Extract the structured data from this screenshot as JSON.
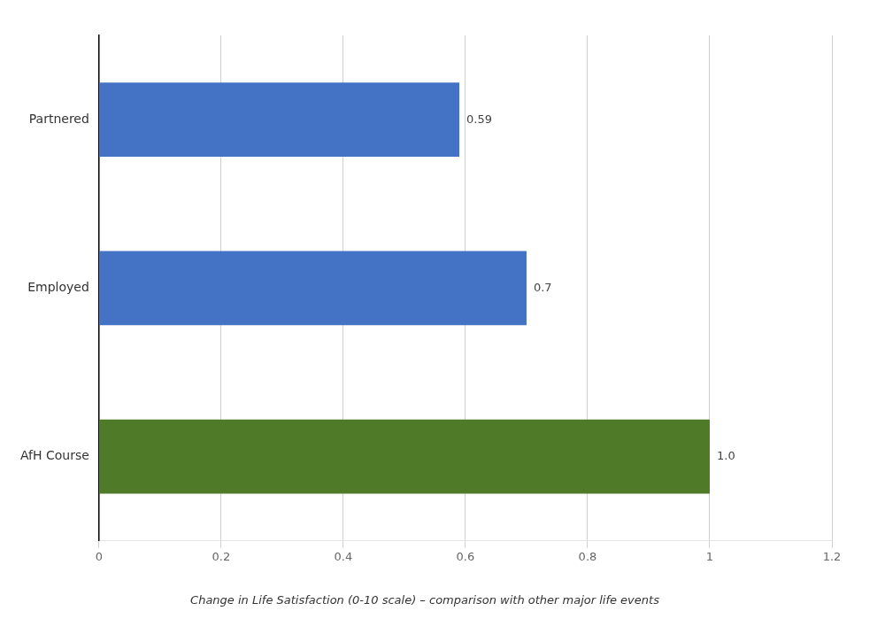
{
  "chart_data": {
    "type": "bar",
    "orientation": "horizontal",
    "caption": "Change in Life Satisfaction (0-10 scale) – comparison with other major life events",
    "categories": [
      "AfH Course",
      "Employed",
      "Partnered"
    ],
    "values": [
      1.0,
      0.7,
      0.59
    ],
    "value_labels": [
      "1.0",
      "0.7",
      "0.59"
    ],
    "data_labels": true,
    "colors": [
      "#4f7a28",
      "#4472c4",
      "#4472c4"
    ],
    "xlim": [
      0,
      1.2
    ],
    "xticks": [
      0,
      0.2,
      0.4,
      0.6,
      0.8,
      1.0,
      1.2
    ],
    "grid": true
  }
}
